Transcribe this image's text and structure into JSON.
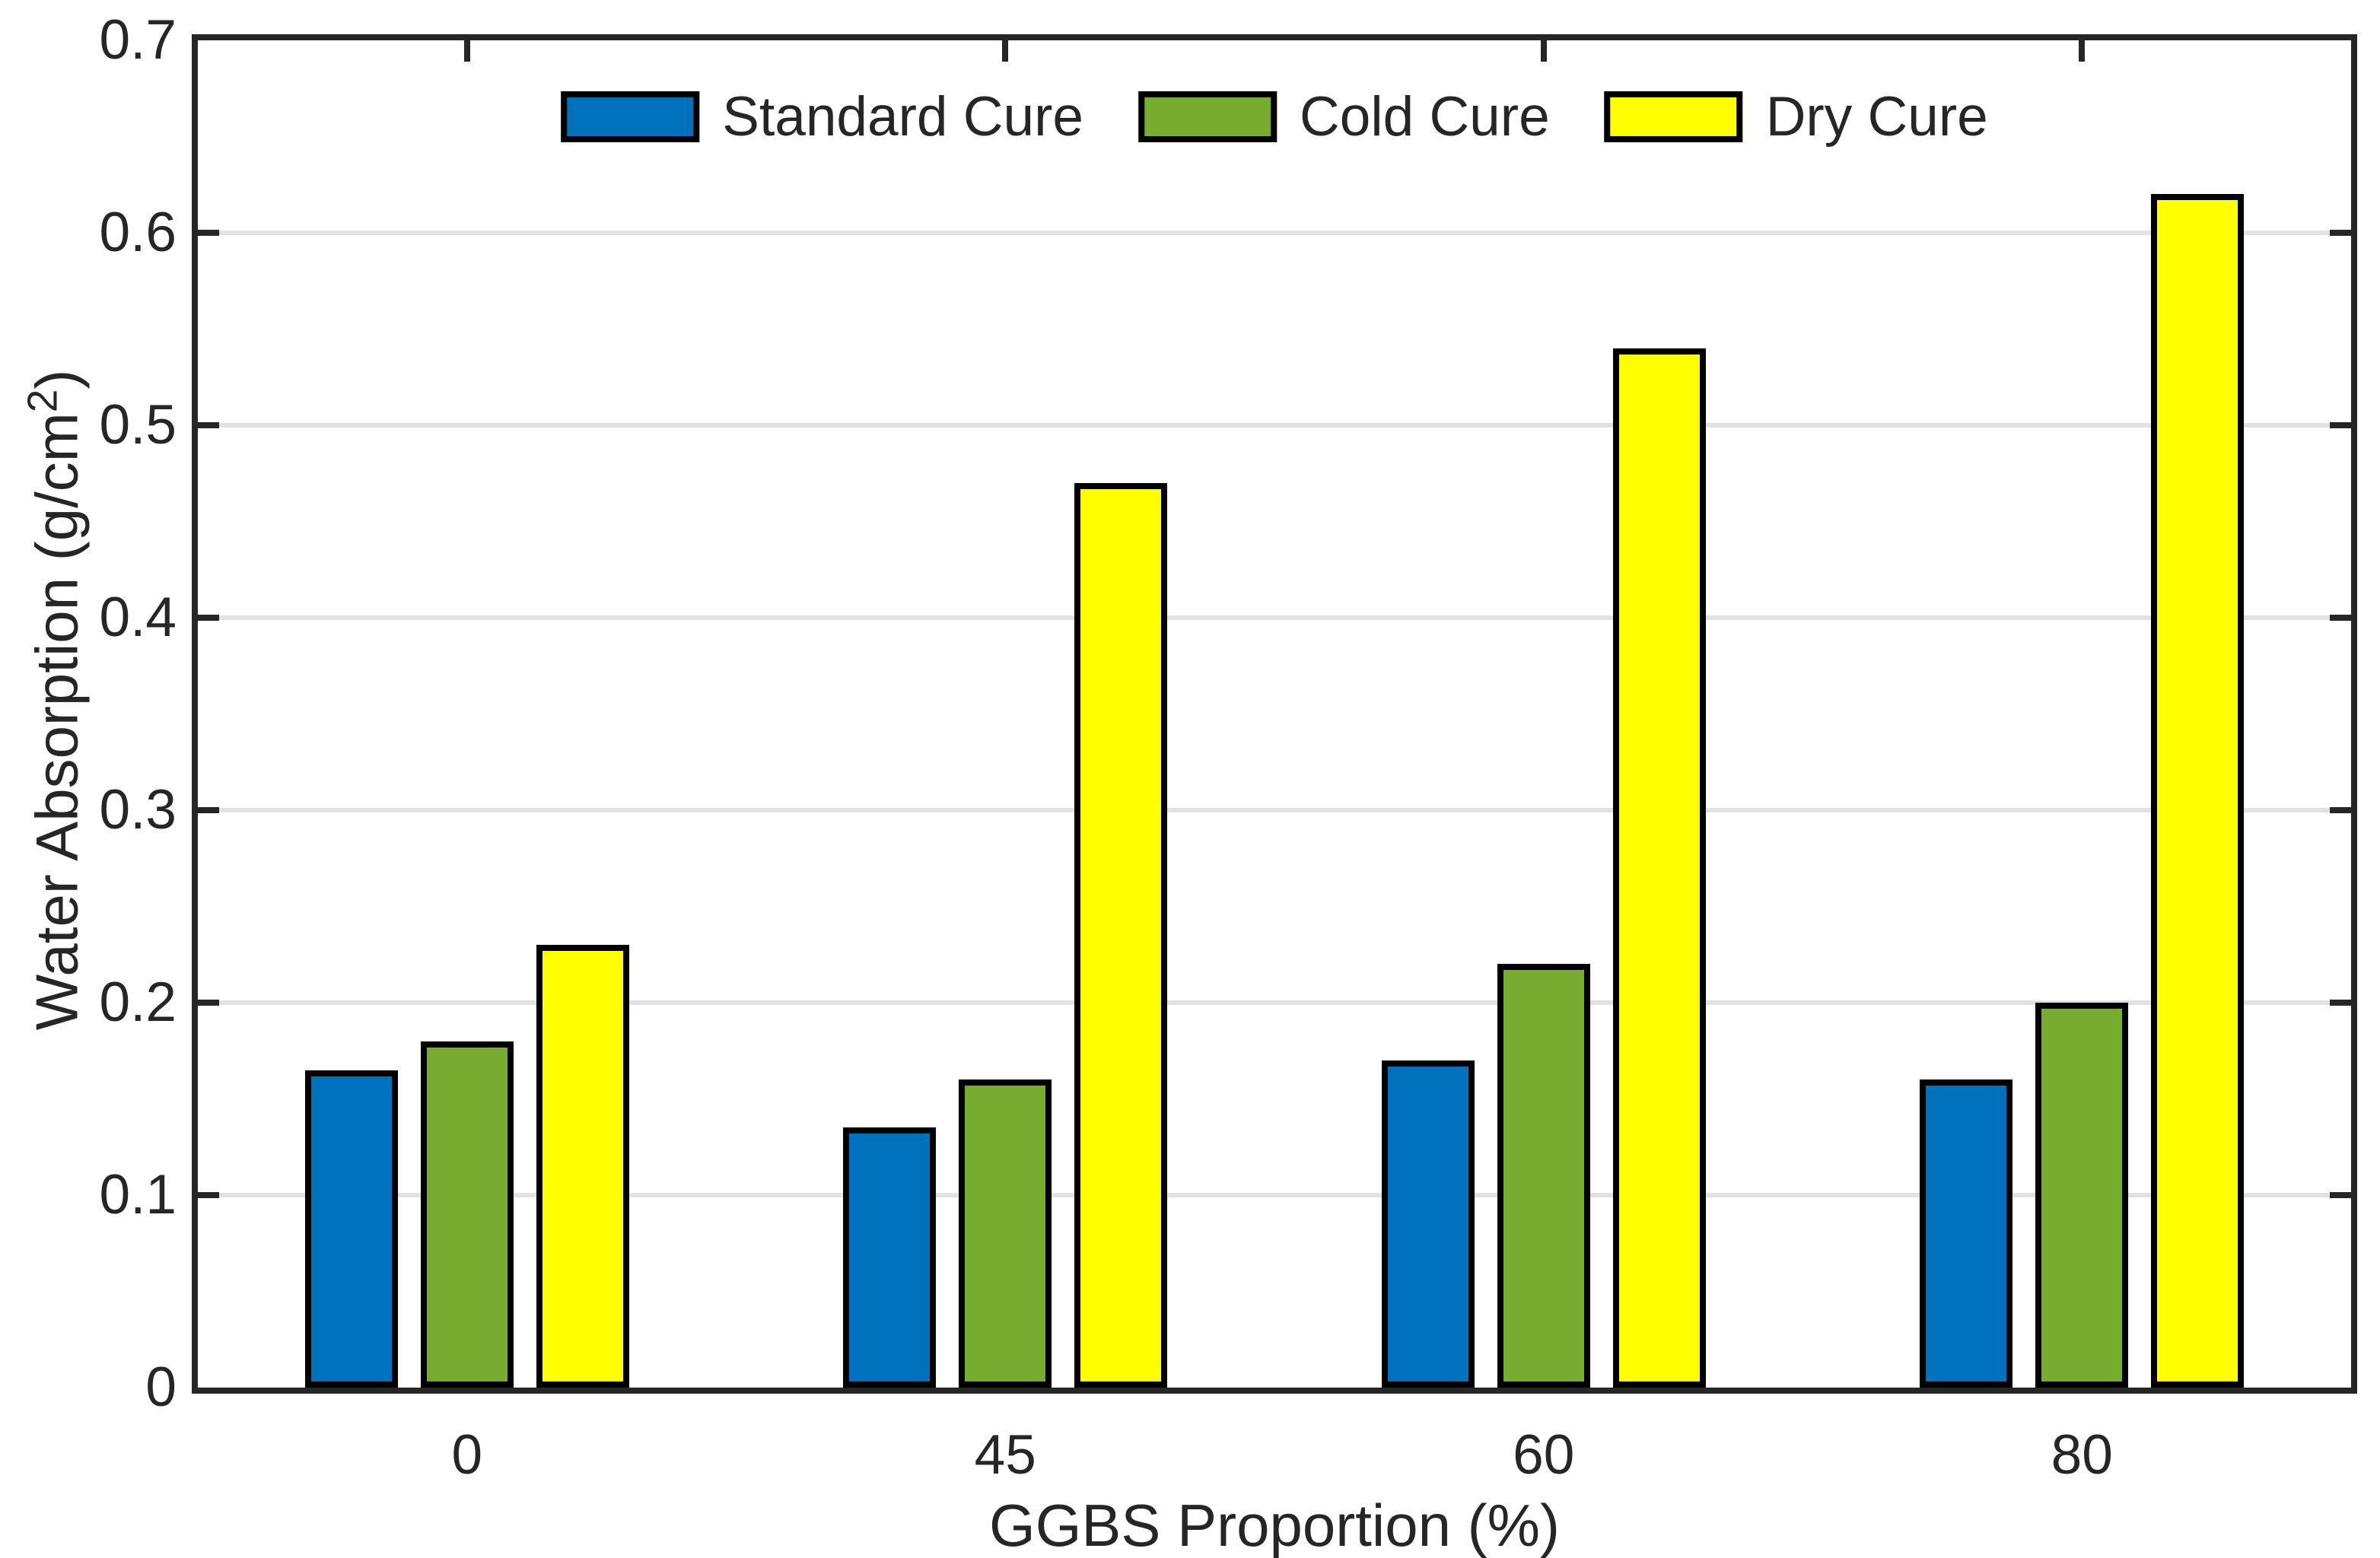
{
  "chart_data": {
    "type": "bar",
    "title": "",
    "xlabel": "GGBS Proportion (%)",
    "ylabel": "Water Absorption (g/cm²)",
    "ylabel_parts": {
      "main": "Water Absorption (g/cm",
      "sup": "2",
      "close": ")"
    },
    "categories": [
      "0",
      "45",
      "60",
      "80"
    ],
    "series": [
      {
        "name": "Standard Cure",
        "color": "#0072BD",
        "values": [
          0.165,
          0.135,
          0.17,
          0.16
        ]
      },
      {
        "name": "Cold Cure",
        "color": "#77AC30",
        "values": [
          0.18,
          0.16,
          0.22,
          0.2
        ]
      },
      {
        "name": "Dry Cure",
        "color": "#FFFF00",
        "values": [
          0.23,
          0.47,
          0.54,
          0.62
        ]
      }
    ],
    "ylim": [
      0,
      0.7
    ],
    "yticks": [
      0,
      0.1,
      0.2,
      0.3,
      0.4,
      0.5,
      0.6,
      0.7
    ],
    "ytick_labels": [
      "0",
      "0.1",
      "0.2",
      "0.3",
      "0.4",
      "0.5",
      "0.6",
      "0.7"
    ],
    "grid": "horizontal",
    "legend_position": "top-center",
    "bar_edge_color": "#000000",
    "axis_color": "#262626",
    "grid_color": "#e2e2e2",
    "background": "#ffffff"
  }
}
